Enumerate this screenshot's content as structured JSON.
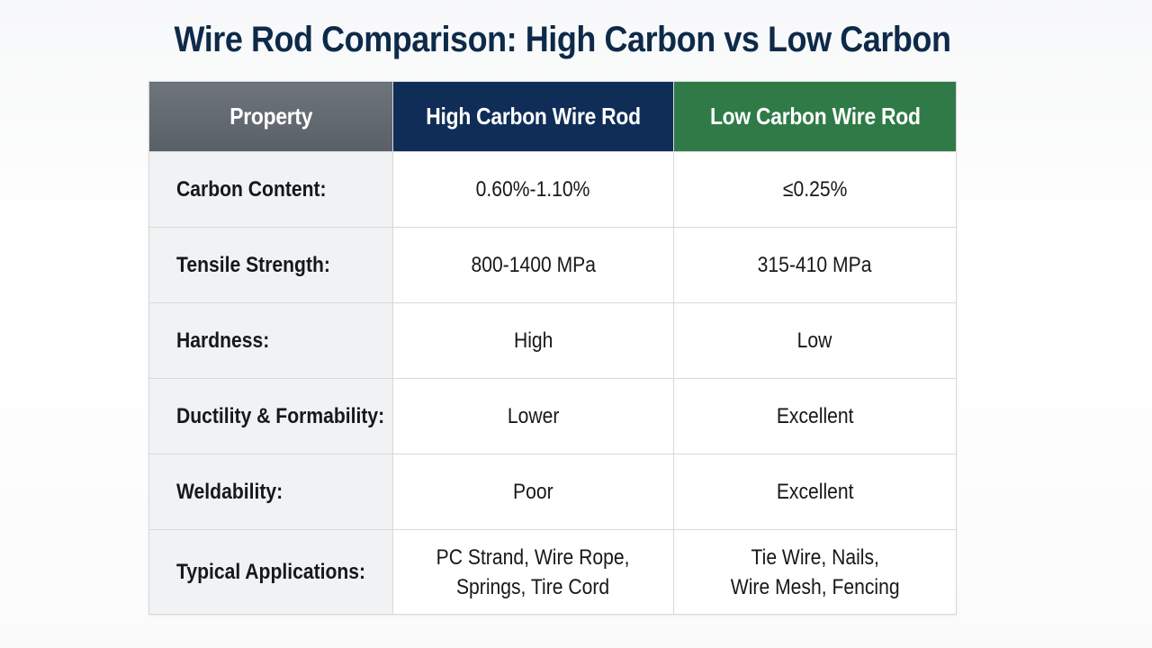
{
  "title": "Wire Rod Comparison: High Carbon vs Low Carbon",
  "colors": {
    "title": "#0e2a4a",
    "property_header": "#5f656c",
    "high_carbon_header": "#0f2d57",
    "low_carbon_header": "#2f7a47",
    "property_cell_bg": "#f1f2f3"
  },
  "table": {
    "headers": [
      "Property",
      "High Carbon Wire Rod",
      "Low Carbon Wire Rod"
    ],
    "rows": [
      {
        "property": "Carbon Content:",
        "high": [
          "0.60%-1.10%"
        ],
        "low": [
          "≤0.25%"
        ]
      },
      {
        "property": "Tensile Strength:",
        "high": [
          "800-1400 MPa"
        ],
        "low": [
          "315-410 MPa"
        ]
      },
      {
        "property": "Hardness:",
        "high": [
          "High"
        ],
        "low": [
          "Low"
        ]
      },
      {
        "property": "Ductility & Formability:",
        "high": [
          "Lower"
        ],
        "low": [
          "Excellent"
        ]
      },
      {
        "property": "Weldability:",
        "high": [
          "Poor"
        ],
        "low": [
          "Excellent"
        ]
      },
      {
        "property": "Typical Applications:",
        "high": [
          "PC Strand, Wire Rope,",
          "Springs, Tire Cord"
        ],
        "low": [
          "Tie Wire, Nails,",
          "Wire Mesh, Fencing"
        ]
      }
    ]
  }
}
